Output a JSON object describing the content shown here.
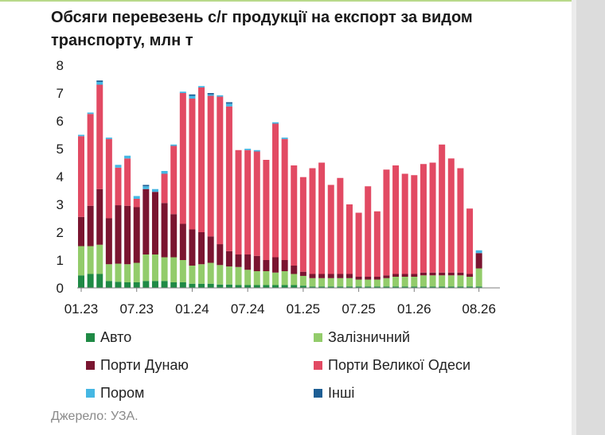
{
  "title": "Обсяги перевезень с/г продукції на експорт за видом транспорту, млн т",
  "source": "Джерело: УЗА.",
  "chart_data": {
    "type": "bar",
    "stacked": true,
    "ylim": [
      0,
      8
    ],
    "yticks": [
      "0",
      "1",
      "2",
      "3",
      "4",
      "5",
      "6",
      "7",
      "8"
    ],
    "xtick_labels": [
      "01.23",
      "07.23",
      "01.24",
      "07.24",
      "01.25",
      "07.25",
      "01.26",
      "08.26"
    ],
    "grid": false,
    "legend_position": "bottom",
    "colors": {
      "Авто": "#1f8a45",
      "Залізничний": "#93cc6b",
      "Порти Дунаю": "#7a1530",
      "Порти Великої Одеси": "#e24a63",
      "Пором": "#45b7e3",
      "Інші": "#1d5e94"
    },
    "categories": [
      "01.23",
      "02.23",
      "03.23",
      "04.23",
      "05.23",
      "06.23",
      "07.23",
      "08.23",
      "09.23",
      "10.23",
      "11.23",
      "12.23",
      "01.24",
      "02.24",
      "03.24",
      "04.24",
      "05.24",
      "06.24",
      "07.24",
      "08.24",
      "09.24",
      "10.24",
      "11.24",
      "12.24",
      "01.25",
      "02.25",
      "03.25",
      "04.25",
      "05.25",
      "06.25",
      "07.25",
      "08.25",
      "09.25",
      "10.25",
      "11.25",
      "12.25",
      "01.26",
      "02.26",
      "03.26",
      "04.26",
      "05.26",
      "06.26",
      "07.26",
      "08.26"
    ],
    "series": [
      {
        "name": "Авто",
        "values": [
          0.45,
          0.5,
          0.5,
          0.25,
          0.22,
          0.2,
          0.2,
          0.25,
          0.25,
          0.25,
          0.2,
          0.2,
          0.15,
          0.15,
          0.15,
          0.12,
          0.12,
          0.1,
          0.1,
          0.1,
          0.1,
          0.1,
          0.1,
          0.1,
          0.08,
          0.05,
          0.05,
          0.05,
          0.05,
          0.05,
          0.05,
          0.05,
          0.05,
          0.05,
          0.05,
          0.05,
          0.05,
          0.05,
          0.05,
          0.05,
          0.05,
          0.05,
          0.05,
          0.05
        ]
      },
      {
        "name": "Залізничний",
        "values": [
          1.05,
          1.0,
          1.05,
          0.6,
          0.65,
          0.65,
          0.7,
          0.95,
          0.95,
          0.85,
          0.9,
          0.8,
          0.65,
          0.7,
          0.75,
          0.7,
          0.65,
          0.65,
          0.55,
          0.5,
          0.5,
          0.45,
          0.5,
          0.4,
          0.35,
          0.3,
          0.3,
          0.3,
          0.3,
          0.3,
          0.25,
          0.25,
          0.25,
          0.3,
          0.35,
          0.35,
          0.35,
          0.4,
          0.4,
          0.4,
          0.4,
          0.4,
          0.35,
          0.65
        ]
      },
      {
        "name": "Порти Дунаю",
        "values": [
          1.05,
          1.45,
          2.0,
          1.65,
          2.1,
          2.1,
          2.0,
          2.35,
          2.25,
          1.95,
          1.55,
          1.3,
          1.3,
          1.15,
          0.95,
          0.75,
          0.55,
          0.45,
          0.55,
          0.55,
          0.4,
          0.55,
          0.4,
          0.3,
          0.15,
          0.15,
          0.15,
          0.15,
          0.15,
          0.15,
          0.1,
          0.1,
          0.1,
          0.1,
          0.1,
          0.1,
          0.1,
          0.1,
          0.1,
          0.1,
          0.1,
          0.1,
          0.1,
          0.55
        ]
      },
      {
        "name": "Порти Великої Одеси",
        "values": [
          2.9,
          3.3,
          3.75,
          2.85,
          1.35,
          1.7,
          0.3,
          0.0,
          0.0,
          1.05,
          2.45,
          4.7,
          4.7,
          5.2,
          5.05,
          5.3,
          5.2,
          3.75,
          3.75,
          3.75,
          3.6,
          4.8,
          4.35,
          3.6,
          3.4,
          3.8,
          4.0,
          3.2,
          3.45,
          2.5,
          2.3,
          3.25,
          2.35,
          3.8,
          3.9,
          3.6,
          3.55,
          3.9,
          3.95,
          4.6,
          4.1,
          3.75,
          2.35,
          0.0
        ]
      },
      {
        "name": "Пором",
        "values": [
          0.05,
          0.05,
          0.1,
          0.05,
          0.1,
          0.1,
          0.1,
          0.1,
          0.1,
          0.1,
          0.05,
          0.05,
          0.1,
          0.05,
          0.05,
          0.05,
          0.1,
          0.0,
          0.05,
          0.05,
          0.0,
          0.05,
          0.05,
          0.0,
          0.0,
          0.0,
          0.0,
          0.0,
          0.0,
          0.0,
          0.0,
          0.0,
          0.0,
          0.0,
          0.0,
          0.0,
          0.0,
          0.0,
          0.0,
          0.0,
          0.0,
          0.0,
          0.0,
          0.1
        ]
      },
      {
        "name": "Інші",
        "values": [
          0.0,
          0.0,
          0.05,
          0.0,
          0.0,
          0.0,
          0.0,
          0.05,
          0.0,
          0.0,
          0.0,
          0.0,
          0.05,
          0.0,
          0.05,
          0.0,
          0.05,
          0.0,
          0.0,
          0.0,
          0.0,
          0.0,
          0.0,
          0.0,
          0.0,
          0.0,
          0.0,
          0.0,
          0.0,
          0.0,
          0.0,
          0.0,
          0.0,
          0.0,
          0.0,
          0.0,
          0.0,
          0.0,
          0.0,
          0.0,
          0.0,
          0.0,
          0.0,
          0.0
        ]
      }
    ]
  }
}
